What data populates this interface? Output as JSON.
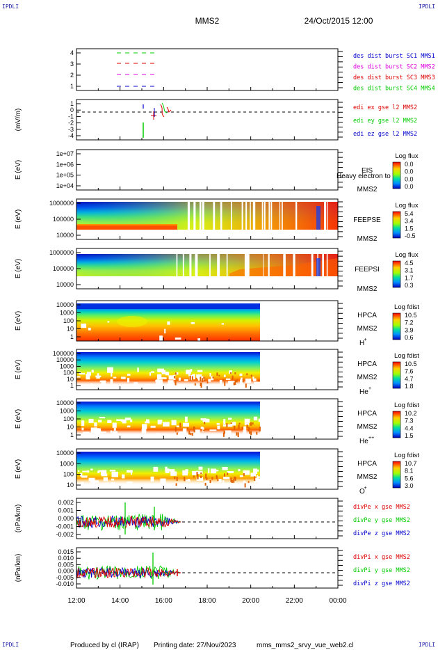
{
  "corners": {
    "tl": "IPDLI",
    "tr": "IPDLI",
    "bl": "IPDLI",
    "br": "IPDLI"
  },
  "header": {
    "spacecraft": "MMS2",
    "datetime": "24/Oct/2015 12:00"
  },
  "footer": {
    "produced": "Produced by cl (IRAP)",
    "printing": "Printing date: 27/Nov/2023",
    "file": "mms_mms2_srvy_vue_web2.cl"
  },
  "colors": {
    "red": "#dd0000",
    "green": "#00cc00",
    "blue": "#0000cc",
    "magenta": "#dd00dd",
    "navy": "#1a1aa8"
  },
  "chart_data": [
    {
      "id": "p1",
      "type": "line",
      "ylabel": "",
      "yticks": [
        "4",
        "3",
        "2",
        "1"
      ],
      "series": [
        {
          "name": "des dist burst SC1 MMS1",
          "color": "#0000cc"
        },
        {
          "name": "des dist burst SC2 MMS2",
          "color": "#dd00dd"
        },
        {
          "name": "des dist burst SC3 MMS3",
          "color": "#dd0000"
        },
        {
          "name": "des dist burst SC4 MMS4",
          "color": "#00cc00"
        }
      ]
    },
    {
      "id": "p2",
      "type": "line",
      "ylabel": "(mV/m)",
      "yticks": [
        "1",
        "0",
        "-1",
        "-2",
        "-3",
        "-4"
      ],
      "series": [
        {
          "name": "edi ex gse l2 MMS2",
          "color": "#dd0000"
        },
        {
          "name": "edi ey gse l2 MMS2",
          "color": "#00cc00"
        },
        {
          "name": "edi ez gse l2 MMS2",
          "color": "#0000cc"
        }
      ]
    },
    {
      "id": "p3",
      "type": "heatmap",
      "ylabel": "E (eV)",
      "yticks": [
        "1e+07",
        "1e+06",
        "1e+05",
        "1e+04"
      ],
      "instrument": "EIS",
      "sc": "MMS2",
      "overlay": "Heavy electron to",
      "cbar_label": "Log flux",
      "cbar_ticks": [
        "0.0",
        "0.0",
        "0.0",
        "0.0"
      ]
    },
    {
      "id": "p4",
      "type": "heatmap",
      "ylabel": "E (eV)",
      "yticks": [
        "1000000",
        "100000",
        "10000"
      ],
      "instrument": "FEEPSE",
      "sc": "MMS2",
      "cbar_label": "Log flux",
      "cbar_ticks": [
        "5.4",
        "3.4",
        "1.5",
        "-0.5"
      ]
    },
    {
      "id": "p5",
      "type": "heatmap",
      "ylabel": "E (eV)",
      "yticks": [
        "1000000",
        "100000",
        "10000"
      ],
      "instrument": "FEEPSI",
      "sc": "MMS2",
      "cbar_label": "Log flux",
      "cbar_ticks": [
        "4.5",
        "3.1",
        "1.7",
        "0.3"
      ]
    },
    {
      "id": "p6",
      "type": "heatmap",
      "ylabel": "E (eV)",
      "yticks": [
        "10000",
        "1000",
        "100",
        "10",
        "1"
      ],
      "instrument": "HPCA",
      "sc": "MMS2",
      "species": "H",
      "species_sup": "+",
      "cbar_label": "Log fdist",
      "cbar_ticks": [
        "10.5",
        "7.2",
        "3.9",
        "0.6"
      ]
    },
    {
      "id": "p7",
      "type": "heatmap",
      "ylabel": "E (eV)",
      "yticks": [
        "100000",
        "10000",
        "1000",
        "100",
        "10",
        "1"
      ],
      "instrument": "HPCA",
      "sc": "MMS2",
      "species": "He",
      "species_sup": "+",
      "cbar_label": "Log fdist",
      "cbar_ticks": [
        "10.5",
        "7.6",
        "4.7",
        "1.8"
      ]
    },
    {
      "id": "p8",
      "type": "heatmap",
      "ylabel": "E (eV)",
      "yticks": [
        "10000",
        "1000",
        "100",
        "10",
        "1"
      ],
      "instrument": "HPCA",
      "sc": "MMS2",
      "species": "He",
      "species_sup": "++",
      "cbar_label": "Log fdist",
      "cbar_ticks": [
        "10.2",
        "7.3",
        "4.4",
        "1.5"
      ]
    },
    {
      "id": "p9",
      "type": "heatmap",
      "ylabel": "E (eV)",
      "yticks": [
        "10000",
        "1000",
        "100",
        "10"
      ],
      "instrument": "HPCA",
      "sc": "MMS2",
      "species": "O",
      "species_sup": "+",
      "cbar_label": "Log fdist",
      "cbar_ticks": [
        "10.7",
        "8.1",
        "5.6",
        "3.0"
      ]
    },
    {
      "id": "p10",
      "type": "line",
      "ylabel": "(nPa/km)",
      "yticks": [
        "0.002",
        "0.001",
        "0.000",
        "-0.001",
        "-0.002"
      ],
      "series": [
        {
          "name": "divPe x gse MMS2",
          "color": "#dd0000"
        },
        {
          "name": "divPe y gse MMS2",
          "color": "#00cc00"
        },
        {
          "name": "divPe z gse MMS2",
          "color": "#0000cc"
        }
      ]
    },
    {
      "id": "p11",
      "type": "line",
      "ylabel": "(nPa/km)",
      "yticks": [
        "0.015",
        "0.010",
        "0.005",
        "0.000",
        "-0.005",
        "-0.010"
      ],
      "series": [
        {
          "name": "divPi x gse MMS2",
          "color": "#dd0000"
        },
        {
          "name": "divPi y gse MMS2",
          "color": "#00cc00"
        },
        {
          "name": "divPi z gse MMS2",
          "color": "#0000cc"
        }
      ]
    }
  ],
  "time_axis": {
    "ticks": [
      "12:00",
      "14:00",
      "16:00",
      "18:00",
      "20:00",
      "22:00",
      "00:00"
    ]
  }
}
